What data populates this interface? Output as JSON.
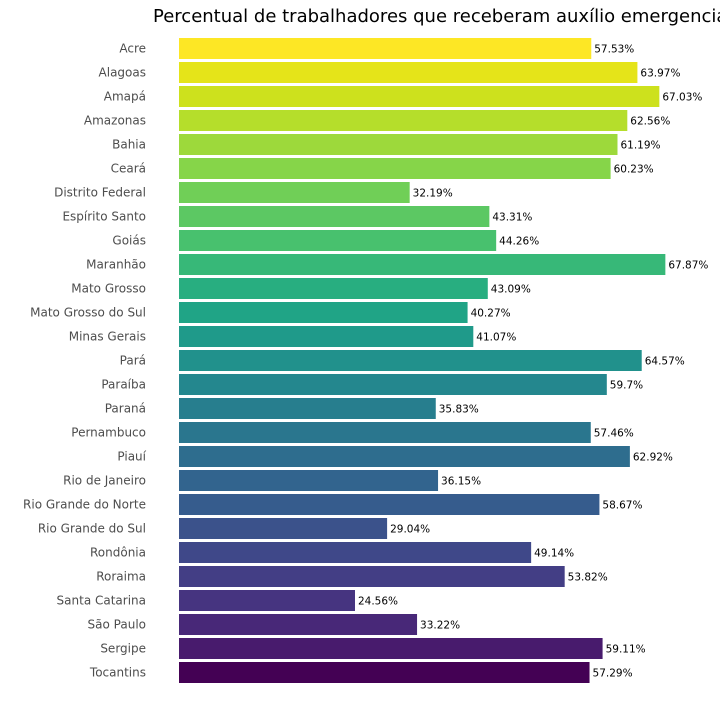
{
  "chart_data": {
    "type": "bar",
    "orientation": "horizontal",
    "title": "Percentual de trabalhadores que receberam auxílio emergencial",
    "xlabel": "",
    "ylabel": "",
    "grid": false,
    "value_suffix": "%",
    "categories": [
      "Acre",
      "Alagoas",
      "Amapá",
      "Amazonas",
      "Bahia",
      "Ceará",
      "Distrito Federal",
      "Espírito Santo",
      "Goiás",
      "Maranhão",
      "Mato Grosso",
      "Mato Grosso do Sul",
      "Minas Gerais",
      "Pará",
      "Paraíba",
      "Paraná",
      "Pernambuco",
      "Piauí",
      "Rio de Janeiro",
      "Rio Grande do Norte",
      "Rio Grande do Sul",
      "Rondônia",
      "Roraima",
      "Santa Catarina",
      "São Paulo",
      "Sergipe",
      "Tocantins"
    ],
    "values": [
      57.53,
      63.97,
      67.03,
      62.56,
      61.19,
      60.23,
      32.19,
      43.31,
      44.26,
      67.87,
      43.09,
      40.27,
      41.07,
      64.57,
      59.7,
      35.83,
      57.46,
      62.92,
      36.15,
      58.67,
      29.04,
      49.14,
      53.82,
      24.56,
      33.22,
      59.11,
      57.29
    ],
    "colors": [
      "#fde725",
      "#e5e419",
      "#cde11d",
      "#b5de2b",
      "#9dd93b",
      "#86d549",
      "#70cf57",
      "#5cc863",
      "#48c16e",
      "#37b878",
      "#28ae80",
      "#20a486",
      "#1f9a8a",
      "#21918c",
      "#24878e",
      "#277e8e",
      "#2a768e",
      "#2e6d8e",
      "#32648e",
      "#365c8d",
      "#3b528b",
      "#3f4889",
      "#433e85",
      "#463480",
      "#482878",
      "#481b6d",
      "#440154"
    ]
  }
}
